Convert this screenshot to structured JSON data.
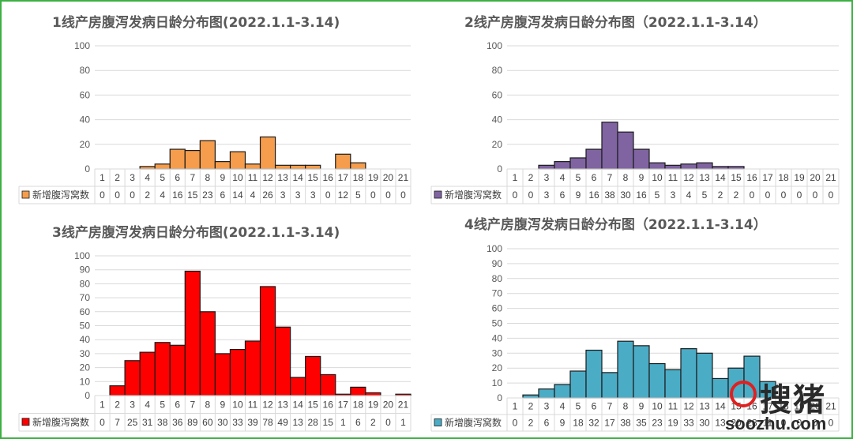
{
  "chart_data": [
    {
      "type": "bar",
      "title": "1线产房腹泻发病日龄分布图(2022.1.1-3.14)",
      "categories": [
        "1",
        "2",
        "3",
        "4",
        "5",
        "6",
        "7",
        "8",
        "9",
        "10",
        "11",
        "12",
        "13",
        "14",
        "15",
        "16",
        "17",
        "18",
        "19",
        "20",
        "21"
      ],
      "series": [
        {
          "name": "新增腹泻窝数",
          "values": [
            0,
            0,
            0,
            2,
            4,
            16,
            15,
            23,
            6,
            14,
            4,
            26,
            3,
            3,
            3,
            0,
            12,
            5,
            0,
            0,
            0
          ]
        }
      ],
      "ylim": [
        0,
        100
      ],
      "yticks": [
        0,
        20,
        40,
        60,
        80,
        100
      ],
      "color": "#f59d4c"
    },
    {
      "type": "bar",
      "title": "2线产房腹泻发病日龄分布图（2022.1.1-3.14）",
      "categories": [
        "1",
        "2",
        "3",
        "4",
        "5",
        "6",
        "7",
        "8",
        "9",
        "10",
        "11",
        "12",
        "13",
        "14",
        "15",
        "16",
        "17",
        "18",
        "19",
        "20",
        "21"
      ],
      "series": [
        {
          "name": "新增腹泻窝数",
          "values": [
            0,
            0,
            3,
            6,
            9,
            16,
            38,
            30,
            16,
            5,
            3,
            4,
            5,
            2,
            2,
            0,
            0,
            0,
            0,
            0,
            0
          ]
        }
      ],
      "ylim": [
        0,
        100
      ],
      "yticks": [
        0,
        20,
        40,
        60,
        80,
        100
      ],
      "color": "#8064a2"
    },
    {
      "type": "bar",
      "title": "3线产房腹泻发病日龄分布图(2022.1.1-3.14)",
      "categories": [
        "1",
        "2",
        "3",
        "4",
        "5",
        "6",
        "7",
        "8",
        "9",
        "10",
        "11",
        "12",
        "13",
        "14",
        "15",
        "16",
        "17",
        "18",
        "19",
        "20",
        "21"
      ],
      "series": [
        {
          "name": "新增腹泻窝数",
          "values": [
            0,
            7,
            25,
            31,
            38,
            36,
            89,
            60,
            30,
            33,
            39,
            78,
            49,
            13,
            28,
            15,
            1,
            6,
            2,
            0,
            1
          ]
        }
      ],
      "ylim": [
        0,
        100
      ],
      "yticks": [
        0,
        10,
        20,
        30,
        40,
        50,
        60,
        70,
        80,
        90,
        100
      ],
      "color": "#ff0000"
    },
    {
      "type": "bar",
      "title": "4线产房腹泻发病日龄分布图（2022.1.1-3.14）",
      "categories": [
        "1",
        "2",
        "3",
        "4",
        "5",
        "6",
        "7",
        "8",
        "9",
        "10",
        "11",
        "12",
        "13",
        "14",
        "15",
        "16",
        "17",
        "18",
        "19",
        "20",
        "21"
      ],
      "series": [
        {
          "name": "新增腹泻窝数",
          "values": [
            0,
            2,
            6,
            9,
            18,
            32,
            17,
            38,
            35,
            23,
            19,
            33,
            30,
            13,
            20,
            28,
            11,
            0,
            0,
            0,
            0
          ]
        }
      ],
      "ylim": [
        0,
        100
      ],
      "yticks": [
        0,
        10,
        20,
        30,
        40,
        50,
        60,
        70,
        80,
        90,
        100
      ],
      "color": "#4bacc6"
    }
  ],
  "watermark": {
    "text": "搜猪",
    "domain": "soozhu.com"
  }
}
